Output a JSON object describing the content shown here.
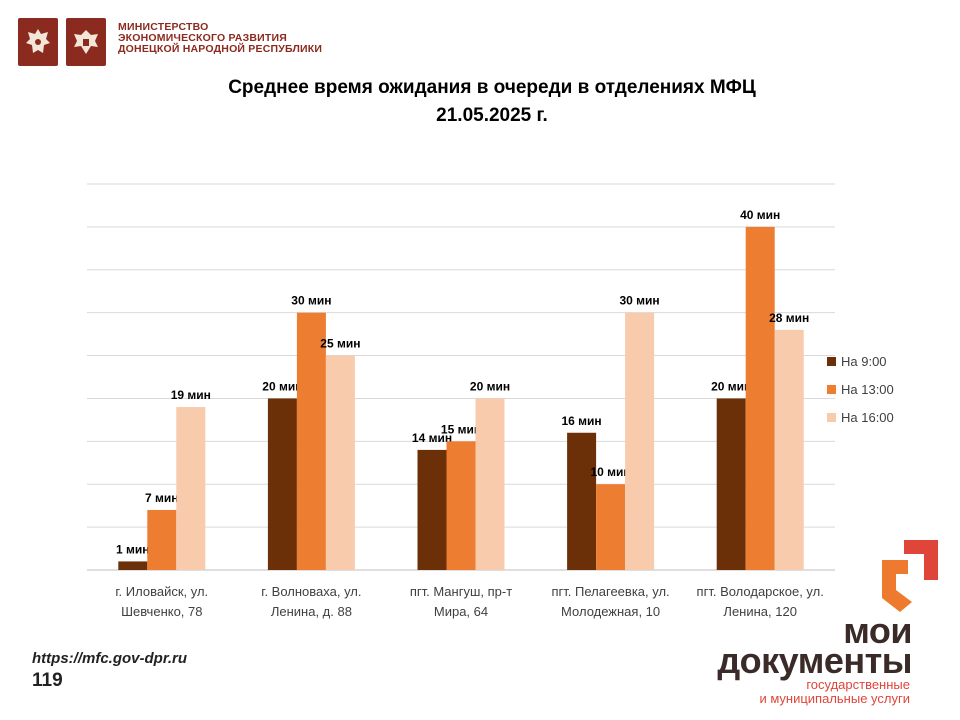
{
  "header": {
    "ministry_line1": "МИНИСТЕРСТВО",
    "ministry_line2": "ЭКОНОМИЧЕСКОГО РАЗВИТИЯ",
    "ministry_line3": "ДОНЕЦКОЙ НАРОДНОЙ РЕСПУБЛИКИ",
    "emblem_icons": [
      "russia-emblem-icon",
      "dpr-emblem-icon"
    ]
  },
  "colors": {
    "header_brand": "#8b2a1e",
    "series_900": "#6b3008",
    "series_1300": "#ed7d31",
    "series_1600": "#f8cbad",
    "grid": "#d9d9d9",
    "logo_orange": "#ee7a30",
    "logo_red": "#e0453a"
  },
  "chart_data": {
    "type": "bar",
    "title": "Среднее время ожидания в очереди в отделениях МФЦ",
    "subtitle": "21.05.2025 г.",
    "categories": [
      [
        "г. Иловайск, ул.",
        "Шевченко, 78"
      ],
      [
        "г. Волноваха, ул.",
        "Ленина, д. 88"
      ],
      [
        "пгт. Мангуш, пр-т",
        "Мира, 64"
      ],
      [
        "пгт. Пелагеевка, ул.",
        "Молодежная, 10"
      ],
      [
        "пгт. Володарское, ул.",
        "Ленина, 120"
      ]
    ],
    "series": [
      {
        "name": "На 9:00",
        "values": [
          1,
          20,
          14,
          16,
          20
        ],
        "labels": [
          "1 мин",
          "20 мин",
          "14 мин",
          "16 мин",
          "20 мин"
        ]
      },
      {
        "name": "На 13:00",
        "values": [
          7,
          30,
          15,
          10,
          40
        ],
        "labels": [
          "7  мин",
          "30 мин",
          "15 мин",
          "10 мин",
          "40 мин"
        ]
      },
      {
        "name": "На 16:00",
        "values": [
          19,
          25,
          20,
          30,
          28
        ],
        "labels": [
          "19 мин",
          "25 мин",
          "20 мин",
          "30 мин",
          "28 мин"
        ]
      }
    ],
    "ylim": [
      0,
      45
    ],
    "grid": true,
    "legend": "right"
  },
  "footer": {
    "url": "https://mfc.gov-dpr.ru",
    "page_number": "119"
  },
  "brand": {
    "name_line1": "мои",
    "name_line2": "документы",
    "sub_line1": "государственные",
    "sub_line2": "и муниципальные услуги",
    "logo_icon": "moi-dokumenty-logo-icon"
  }
}
